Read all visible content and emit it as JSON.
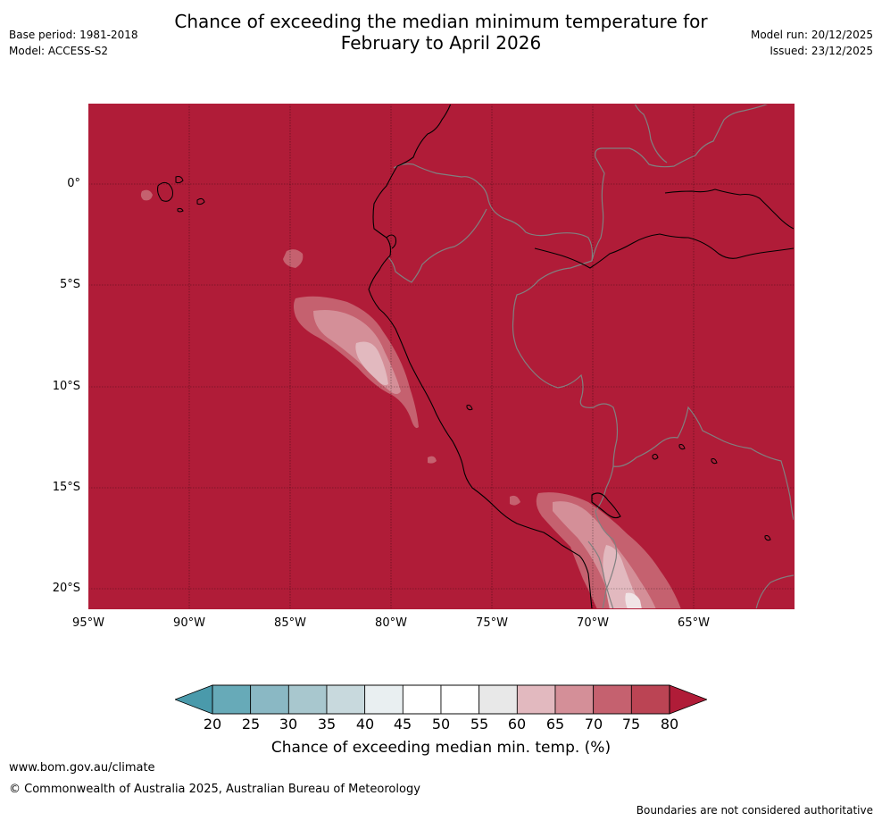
{
  "header": {
    "base_period": "Base period: 1981-2018",
    "model": "Model: ACCESS-S2",
    "title_line1": "Chance of exceeding the median minimum temperature for",
    "title_line2": "February to April 2026",
    "model_run": "Model run: 20/12/2025",
    "issued": "Issued: 23/12/2025"
  },
  "map": {
    "lat_labels": [
      "0°",
      "5°S",
      "10°S",
      "15°S",
      "20°S"
    ],
    "lon_labels": [
      "95°W",
      "90°W",
      "85°W",
      "80°W",
      "75°W",
      "70°W",
      "65°W"
    ],
    "base_color": "#b01c38",
    "coast_color": "#000000",
    "border_color": "#808080"
  },
  "colorbar": {
    "title": "Chance of exceeding median min. temp. (%)",
    "ticks": [
      "20",
      "25",
      "30",
      "35",
      "40",
      "45",
      "50",
      "55",
      "60",
      "65",
      "70",
      "75",
      "80"
    ],
    "under_color": "#4a9aab",
    "over_color": "#b01c38",
    "colors": [
      "#67aab8",
      "#8ab8c4",
      "#a8c7ce",
      "#c8d9dd",
      "#e9eff1",
      "#ffffff",
      "#ffffff",
      "#e8e8e8",
      "#e2b9bf",
      "#d48f98",
      "#c5616f",
      "#bb4454"
    ]
  },
  "footer": {
    "website": "www.bom.gov.au/climate",
    "copyright": "© Commonwealth of Australia 2025, Australian Bureau of Meteorology",
    "disclaimer": "Boundaries are not considered authoritative"
  }
}
